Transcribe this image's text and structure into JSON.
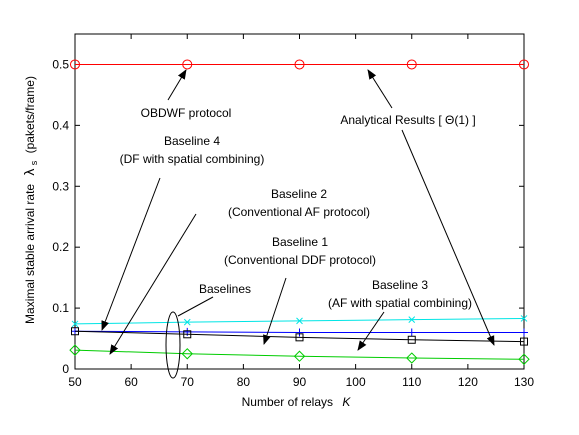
{
  "chart_data": {
    "type": "line",
    "xlabel": "Number of relays",
    "xlabel_symbol": "K",
    "ylabel": "Maximal stable arrival rate",
    "ylabel_symbol": "λ",
    "ylabel_subscript": "s",
    "ylabel_unit": "(pakets/frame)",
    "xlim": [
      50,
      130
    ],
    "ylim": [
      0,
      0.55
    ],
    "xticks": [
      50,
      60,
      70,
      80,
      90,
      100,
      110,
      120,
      130
    ],
    "yticks": [
      0,
      0.1,
      0.2,
      0.3,
      0.4,
      0.5
    ],
    "xtick_labels": [
      "50",
      "60",
      "70",
      "80",
      "90",
      "100",
      "110",
      "120",
      "130"
    ],
    "ytick_labels": [
      "0",
      "0.1",
      "0.2",
      "0.3",
      "0.4",
      "0.5"
    ],
    "grid": false,
    "series": [
      {
        "name": "OBDWF protocol",
        "color": "#ff0000",
        "marker": "circle",
        "x": [
          50,
          70,
          90,
          110,
          130
        ],
        "values": [
          0.5,
          0.5,
          0.5,
          0.5,
          0.5
        ]
      },
      {
        "name": "Baseline 4",
        "color": "#00e5e5",
        "marker": "x",
        "x": [
          50,
          70,
          90,
          110,
          130
        ],
        "values": [
          0.074,
          0.077,
          0.079,
          0.081,
          0.083
        ]
      },
      {
        "name": "Baseline 1",
        "color": "#0000ff",
        "marker": "plus",
        "x": [
          50,
          70,
          90,
          110,
          130
        ],
        "values": [
          0.062,
          0.061,
          0.06,
          0.06,
          0.06
        ]
      },
      {
        "name": "Baseline 3",
        "color": "#000000",
        "marker": "square",
        "x": [
          50,
          70,
          90,
          110,
          130
        ],
        "values": [
          0.062,
          0.057,
          0.052,
          0.048,
          0.045
        ]
      },
      {
        "name": "Baseline 2",
        "color": "#00cc00",
        "marker": "diamond",
        "x": [
          50,
          70,
          90,
          110,
          130
        ],
        "values": [
          0.031,
          0.025,
          0.021,
          0.018,
          0.016
        ]
      }
    ],
    "annotations": {
      "obdwf": {
        "text": "OBDWF protocol"
      },
      "analytical": {
        "text": "Analytical Results [ Θ(1) ]"
      },
      "baseline4": {
        "line1": "Baseline 4",
        "line2": "(DF with spatial combining)"
      },
      "baseline2": {
        "line1": "Baseline 2",
        "line2": "(Conventional AF protocol)"
      },
      "baseline1": {
        "line1": "Baseline 1",
        "line2": "(Conventional DDF protocol)"
      },
      "baselines": {
        "text": "Baselines"
      },
      "baseline3": {
        "line1": "Baseline 3",
        "line2": "(AF with spatial combining)"
      }
    }
  }
}
